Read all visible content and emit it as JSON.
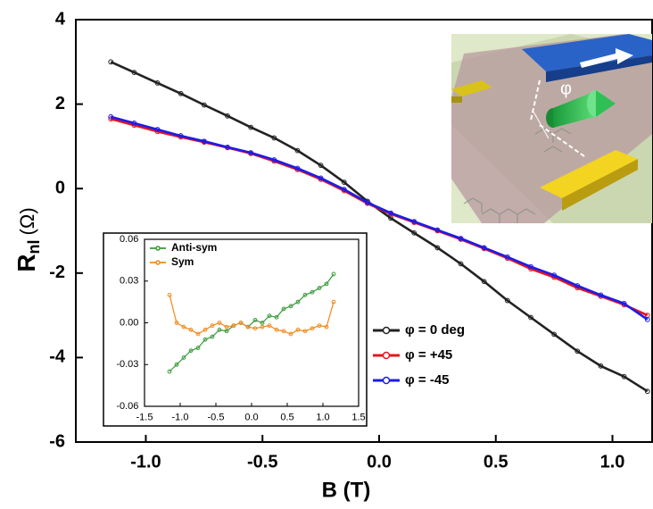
{
  "chart_data": [
    {
      "type": "line",
      "x_label": "B (T)",
      "y_label": {
        "main": "R",
        "sub": "nl",
        "unit": "(Ω)"
      },
      "xlim": [
        -1.3,
        1.17
      ],
      "ylim": [
        -6,
        4
      ],
      "xticks": [
        {
          "value": -1,
          "label": "-1.0"
        },
        {
          "value": -0.5,
          "label": "-0.5"
        },
        {
          "value": 0,
          "label": "0.0"
        },
        {
          "value": 0.5,
          "label": "0.5"
        },
        {
          "value": 1,
          "label": "1.0"
        }
      ],
      "yticks": [
        -6,
        -4,
        -2,
        0,
        2,
        4
      ],
      "legend": "right",
      "x": [
        -1.15,
        -1.05,
        -0.95,
        -0.85,
        -0.75,
        -0.65,
        -0.55,
        -0.45,
        -0.35,
        -0.25,
        -0.15,
        -0.05,
        0.05,
        0.15,
        0.25,
        0.35,
        0.45,
        0.55,
        0.65,
        0.75,
        0.85,
        0.95,
        1.05,
        1.15
      ],
      "series": [
        {
          "name": "φ = 0 deg",
          "color": "#222222",
          "values": [
            3.0,
            2.75,
            2.5,
            2.25,
            1.98,
            1.72,
            1.45,
            1.2,
            0.9,
            0.55,
            0.15,
            -0.3,
            -0.7,
            -1.05,
            -1.4,
            -1.78,
            -2.2,
            -2.65,
            -3.05,
            -3.45,
            -3.85,
            -4.2,
            -4.45,
            -4.8
          ]
        },
        {
          "name": "φ = +45",
          "color": "#e8141c",
          "values": [
            1.65,
            1.5,
            1.35,
            1.22,
            1.1,
            0.97,
            0.83,
            0.65,
            0.45,
            0.22,
            -0.05,
            -0.35,
            -0.6,
            -0.8,
            -1.0,
            -1.2,
            -1.42,
            -1.65,
            -1.9,
            -2.1,
            -2.35,
            -2.55,
            -2.75,
            -3.0
          ]
        },
        {
          "name": "φ = -45",
          "color": "#1c1ce8",
          "values": [
            1.7,
            1.55,
            1.4,
            1.25,
            1.12,
            0.98,
            0.85,
            0.68,
            0.48,
            0.25,
            -0.02,
            -0.33,
            -0.58,
            -0.78,
            -0.98,
            -1.18,
            -1.4,
            -1.62,
            -1.85,
            -2.05,
            -2.3,
            -2.52,
            -2.72,
            -3.1
          ]
        }
      ]
    },
    {
      "type": "line",
      "xlim": [
        -1.5,
        1.5
      ],
      "ylim": [
        -0.06,
        0.06
      ],
      "xticks": [
        {
          "value": -1.5,
          "label": "-1.5"
        },
        {
          "value": -1,
          "label": "-1.0"
        },
        {
          "value": -0.5,
          "label": "-0.5"
        },
        {
          "value": 0,
          "label": "0.0"
        },
        {
          "value": 0.5,
          "label": "0.5"
        },
        {
          "value": 1,
          "label": "1.0"
        },
        {
          "value": 1.5,
          "label": "1.5"
        }
      ],
      "yticks": [
        {
          "value": -0.06,
          "label": "-0.06"
        },
        {
          "value": -0.03,
          "label": "-0.03"
        },
        {
          "value": 0,
          "label": "0.00"
        },
        {
          "value": 0.03,
          "label": "0.03"
        },
        {
          "value": 0.06,
          "label": "0.06"
        }
      ],
      "legend": "upper left",
      "x": [
        -1.15,
        -1.05,
        -0.95,
        -0.85,
        -0.75,
        -0.65,
        -0.55,
        -0.45,
        -0.35,
        -0.25,
        -0.15,
        -0.05,
        0.05,
        0.15,
        0.25,
        0.35,
        0.45,
        0.55,
        0.65,
        0.75,
        0.85,
        0.95,
        1.05,
        1.15
      ],
      "series": [
        {
          "name": "Anti-sym",
          "color": "#3a9a3a",
          "values": [
            -0.035,
            -0.03,
            -0.025,
            -0.02,
            -0.018,
            -0.012,
            -0.01,
            -0.005,
            -0.006,
            -0.002,
            0.0,
            -0.003,
            0.002,
            0.0,
            0.005,
            0.004,
            0.01,
            0.012,
            0.015,
            0.02,
            0.022,
            0.025,
            0.028,
            0.035
          ]
        },
        {
          "name": "Sym",
          "color": "#f08a1a",
          "values": [
            0.02,
            0.0,
            -0.003,
            -0.005,
            -0.008,
            -0.005,
            -0.002,
            0.0,
            -0.003,
            -0.002,
            0.0,
            -0.003,
            -0.004,
            -0.003,
            -0.002,
            -0.005,
            -0.006,
            -0.008,
            -0.005,
            -0.006,
            -0.004,
            -0.002,
            -0.003,
            0.015
          ]
        }
      ]
    }
  ],
  "illustration_label": "φ"
}
